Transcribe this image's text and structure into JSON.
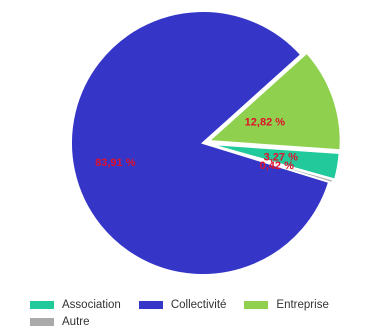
{
  "chart_data": {
    "type": "pie",
    "categories": [
      "Association",
      "Collectivité",
      "Entreprise",
      "Autre"
    ],
    "values": [
      3.27,
      83.91,
      12.82,
      0.42
    ],
    "value_labels": [
      "3,27 %",
      "83,91 %",
      "12,82 %",
      "0,42 %"
    ],
    "colors": [
      "#21c99b",
      "#3535c8",
      "#8fd14f",
      "#aaaaaa"
    ],
    "label_color": "#e0102a",
    "legend_position": "bottom",
    "title": ""
  }
}
